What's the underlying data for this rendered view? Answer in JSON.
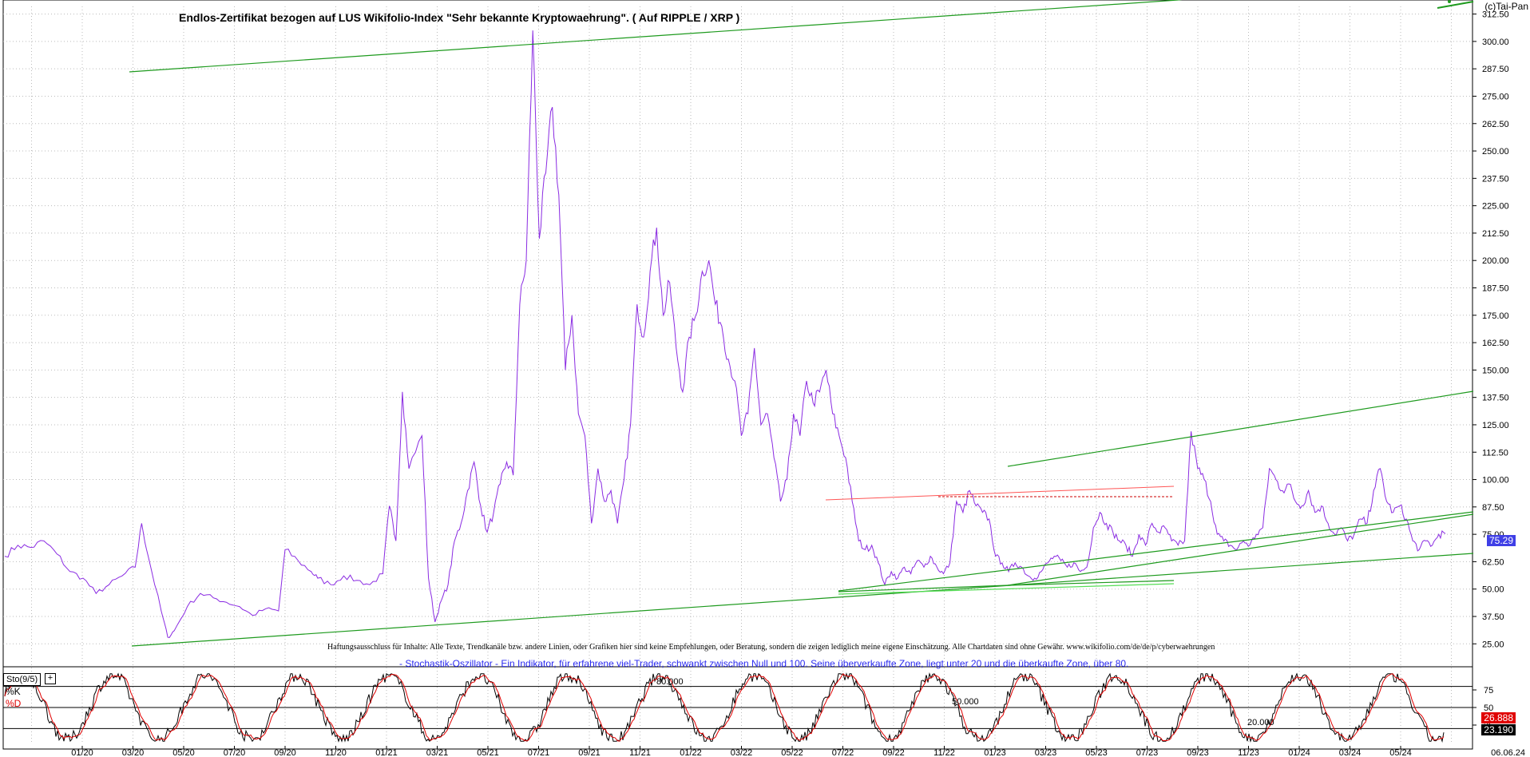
{
  "copyright": "(c)Tai-Pan",
  "title": "Endlos-Zertifikat bezogen auf LUS Wikifolio-Index \"Sehr bekannte Kryptowaehrung\". ( Auf RIPPLE / XRP )",
  "disclaimer": "Haftungsausschluss für Inhalte: Alle Texte, Trendkanäle bzw. andere Linien, oder Grafiken hier sind keine Empfehlungen, oder Beratung, sondern die zeigen lediglich meine eigene Einschätzung. Alle Chartdaten sind ohne Gewähr. www.wikifolio.com/de/de/p/cyberwaehrungen",
  "stoch_description": "- Stochastik-Oszillator - Ein Indikator, für erfahrene viel-Trader, schwankt zwischen Null und 100. Seine überverkaufte Zone, liegt unter 20 und die überkaufte Zone, über 80.",
  "colors": {
    "price": "#8a2be2",
    "trend": "#1e9a1e",
    "resistance": "#ff5555",
    "k": "#000000",
    "d": "#e00000",
    "badge_price": "#3f3fe6",
    "badge_d": "#e00000",
    "badge_k": "#000000"
  },
  "chart_data": [
    {
      "type": "line",
      "name": "price",
      "y_ticks": [
        "312.50",
        "300.00",
        "287.50",
        "275.00",
        "262.50",
        "250.00",
        "237.50",
        "225.00",
        "212.50",
        "200.00",
        "187.50",
        "175.00",
        "162.50",
        "150.00",
        "137.50",
        "125.00",
        "112.50",
        "100.00",
        "87.50",
        "75.00",
        "62.50",
        "50.00",
        "37.50",
        "25.00"
      ],
      "ylim": [
        20,
        316
      ],
      "x_ticks": [
        "01/20",
        "03/20",
        "05/20",
        "07/20",
        "09/20",
        "11/20",
        "01/21",
        "03/21",
        "05/21",
        "07/21",
        "09/21",
        "11/21",
        "01/22",
        "03/22",
        "05/22",
        "07/22",
        "09/22",
        "11/22",
        "01/23",
        "03/23",
        "05/23",
        "07/23",
        "09/23",
        "11/23",
        "01/24",
        "03/24",
        "05/24"
      ],
      "last_date": "06.06.24",
      "last_value": "75.29",
      "anchors": [
        [
          0,
          65
        ],
        [
          2,
          70
        ],
        [
          4,
          69
        ],
        [
          6,
          72
        ],
        [
          8,
          66
        ],
        [
          10,
          58
        ],
        [
          12,
          55
        ],
        [
          14,
          48
        ],
        [
          16,
          52
        ],
        [
          18,
          56
        ],
        [
          20,
          60
        ],
        [
          21,
          80
        ],
        [
          22,
          65
        ],
        [
          24,
          40
        ],
        [
          25,
          28
        ],
        [
          26,
          31
        ],
        [
          28,
          42
        ],
        [
          30,
          48
        ],
        [
          32,
          46
        ],
        [
          34,
          44
        ],
        [
          36,
          42
        ],
        [
          38,
          38
        ],
        [
          40,
          41
        ],
        [
          42,
          40
        ],
        [
          43,
          68
        ],
        [
          45,
          63
        ],
        [
          47,
          58
        ],
        [
          48,
          55
        ],
        [
          50,
          52
        ],
        [
          52,
          56
        ],
        [
          54,
          54
        ],
        [
          56,
          52
        ],
        [
          58,
          57
        ],
        [
          59,
          88
        ],
        [
          60,
          72
        ],
        [
          61,
          140
        ],
        [
          62,
          105
        ],
        [
          64,
          120
        ],
        [
          65,
          55
        ],
        [
          66,
          35
        ],
        [
          67,
          45
        ],
        [
          68,
          52
        ],
        [
          69,
          72
        ],
        [
          70,
          80
        ],
        [
          71,
          95
        ],
        [
          72,
          108
        ],
        [
          73,
          88
        ],
        [
          74,
          76
        ],
        [
          75,
          85
        ],
        [
          76,
          98
        ],
        [
          77,
          108
        ],
        [
          78,
          102
        ],
        [
          79,
          180
        ],
        [
          80,
          200
        ],
        [
          81,
          305
        ],
        [
          82,
          210
        ],
        [
          83,
          240
        ],
        [
          84,
          270
        ],
        [
          85,
          230
        ],
        [
          86,
          150
        ],
        [
          87,
          175
        ],
        [
          88,
          130
        ],
        [
          89,
          120
        ],
        [
          90,
          80
        ],
        [
          91,
          105
        ],
        [
          92,
          90
        ],
        [
          93,
          95
        ],
        [
          94,
          80
        ],
        [
          95,
          100
        ],
        [
          96,
          125
        ],
        [
          97,
          180
        ],
        [
          98,
          165
        ],
        [
          99,
          195
        ],
        [
          100,
          215
        ],
        [
          101,
          175
        ],
        [
          102,
          190
        ],
        [
          103,
          160
        ],
        [
          104,
          140
        ],
        [
          105,
          165
        ],
        [
          106,
          175
        ],
        [
          107,
          195
        ],
        [
          108,
          200
        ],
        [
          109,
          180
        ],
        [
          110,
          170
        ],
        [
          111,
          155
        ],
        [
          112,
          145
        ],
        [
          113,
          120
        ],
        [
          114,
          130
        ],
        [
          115,
          160
        ],
        [
          116,
          125
        ],
        [
          117,
          130
        ],
        [
          118,
          110
        ],
        [
          119,
          90
        ],
        [
          120,
          100
        ],
        [
          121,
          130
        ],
        [
          122,
          120
        ],
        [
          123,
          145
        ],
        [
          124,
          135
        ],
        [
          125,
          140
        ],
        [
          126,
          150
        ],
        [
          127,
          130
        ],
        [
          128,
          120
        ],
        [
          129,
          110
        ],
        [
          130,
          90
        ],
        [
          131,
          72
        ],
        [
          132,
          68
        ],
        [
          133,
          70
        ],
        [
          134,
          62
        ],
        [
          135,
          52
        ],
        [
          136,
          58
        ],
        [
          137,
          55
        ],
        [
          138,
          60
        ],
        [
          139,
          57
        ],
        [
          140,
          63
        ],
        [
          141,
          60
        ],
        [
          142,
          65
        ],
        [
          143,
          60
        ],
        [
          144,
          57
        ],
        [
          145,
          62
        ],
        [
          146,
          90
        ],
        [
          147,
          85
        ],
        [
          148,
          95
        ],
        [
          149,
          88
        ],
        [
          150,
          85
        ],
        [
          151,
          82
        ],
        [
          152,
          65
        ],
        [
          153,
          62
        ],
        [
          154,
          58
        ],
        [
          155,
          62
        ],
        [
          156,
          60
        ],
        [
          157,
          56
        ],
        [
          158,
          55
        ],
        [
          159,
          58
        ],
        [
          160,
          62
        ],
        [
          161,
          65
        ],
        [
          162,
          63
        ],
        [
          163,
          60
        ],
        [
          164,
          62
        ],
        [
          165,
          58
        ],
        [
          166,
          60
        ],
        [
          167,
          78
        ],
        [
          168,
          85
        ],
        [
          169,
          80
        ],
        [
          170,
          76
        ],
        [
          171,
          72
        ],
        [
          172,
          70
        ],
        [
          173,
          65
        ],
        [
          174,
          75
        ],
        [
          175,
          70
        ],
        [
          176,
          80
        ],
        [
          177,
          76
        ],
        [
          178,
          78
        ],
        [
          179,
          72
        ],
        [
          180,
          70
        ],
        [
          181,
          72
        ],
        [
          182,
          122
        ],
        [
          183,
          105
        ],
        [
          184,
          100
        ],
        [
          185,
          90
        ],
        [
          186,
          75
        ],
        [
          187,
          72
        ],
        [
          188,
          70
        ],
        [
          189,
          68
        ],
        [
          190,
          72
        ],
        [
          191,
          70
        ],
        [
          192,
          75
        ],
        [
          193,
          78
        ],
        [
          194,
          105
        ],
        [
          195,
          100
        ],
        [
          196,
          95
        ],
        [
          197,
          98
        ],
        [
          198,
          90
        ],
        [
          199,
          88
        ],
        [
          200,
          95
        ],
        [
          201,
          85
        ],
        [
          202,
          88
        ],
        [
          203,
          80
        ],
        [
          204,
          75
        ],
        [
          205,
          78
        ],
        [
          206,
          72
        ],
        [
          207,
          75
        ],
        [
          208,
          82
        ],
        [
          209,
          80
        ],
        [
          210,
          95
        ],
        [
          211,
          105
        ],
        [
          212,
          90
        ],
        [
          213,
          85
        ],
        [
          214,
          88
        ],
        [
          215,
          82
        ],
        [
          216,
          72
        ],
        [
          217,
          68
        ],
        [
          218,
          72
        ],
        [
          219,
          70
        ],
        [
          220,
          75
        ],
        [
          221,
          75.29
        ]
      ],
      "anchor_count_total": 221
    },
    {
      "type": "line",
      "name": "Sto(9/5)",
      "series": [
        {
          "name": "%K"
        },
        {
          "name": "%D"
        }
      ],
      "levels": [
        "80.000",
        "50.000",
        "20.000"
      ],
      "y_ticks": [
        "75",
        "50",
        "25"
      ],
      "ylim": [
        0,
        100
      ],
      "last_d": "26.888",
      "last_k": "23.190"
    }
  ]
}
